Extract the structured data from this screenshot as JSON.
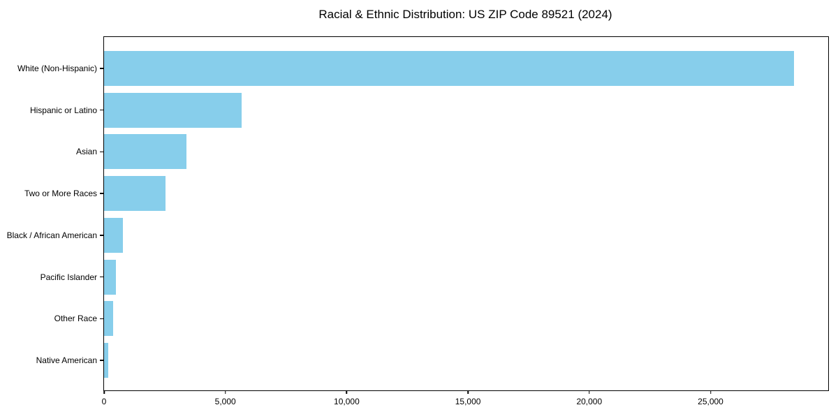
{
  "chart_data": {
    "type": "bar",
    "orientation": "horizontal",
    "title": "Racial & Ethnic Distribution: US ZIP Code 89521 (2024)",
    "categories": [
      "White (Non-Hispanic)",
      "Hispanic or Latino",
      "Asian",
      "Two or More Races",
      "Black / African American",
      "Pacific Islander",
      "Other Race",
      "Native American"
    ],
    "values": [
      28430,
      5660,
      3400,
      2540,
      780,
      490,
      370,
      170
    ],
    "xlim": [
      0,
      29850
    ],
    "xticks": [
      {
        "value": 0,
        "label": "0"
      },
      {
        "value": 5000,
        "label": "5,000"
      },
      {
        "value": 10000,
        "label": "10,000"
      },
      {
        "value": 15000,
        "label": "15,000"
      },
      {
        "value": 20000,
        "label": "20,000"
      },
      {
        "value": 25000,
        "label": "25,000"
      }
    ],
    "xlabel": "",
    "ylabel": "",
    "grid": false,
    "legend": null,
    "bar_color": "#87CEEB",
    "spine_color": "#000000",
    "text_color": "#000000"
  }
}
